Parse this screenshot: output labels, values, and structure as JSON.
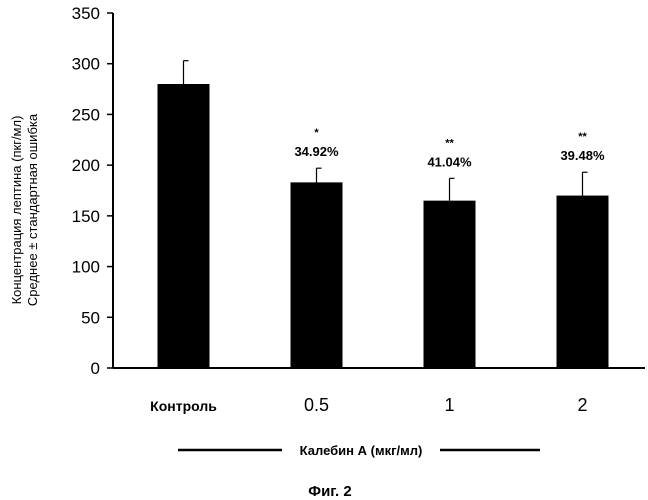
{
  "chart_data": {
    "type": "bar",
    "categories": [
      "Контроль",
      "0.5",
      "1",
      "2"
    ],
    "values": [
      280,
      183,
      165,
      170
    ],
    "errors": [
      23,
      14,
      22,
      23
    ],
    "data_labels": [
      "",
      "34.92%",
      "41.04%",
      "39.48%"
    ],
    "significance": [
      "",
      "*",
      "**",
      "**"
    ],
    "ylabel_line1": "Концентрация лептина (пкг/мл)",
    "ylabel_line2": "Среднее ± стандартная ошибка",
    "xlabel": "Калебин А (мкг/мл)",
    "ylim": [
      0,
      350
    ],
    "yticks": [
      0,
      50,
      100,
      150,
      200,
      250,
      300,
      350
    ],
    "grid": false,
    "bar_color": "#000000"
  },
  "caption": "Фиг. 2"
}
